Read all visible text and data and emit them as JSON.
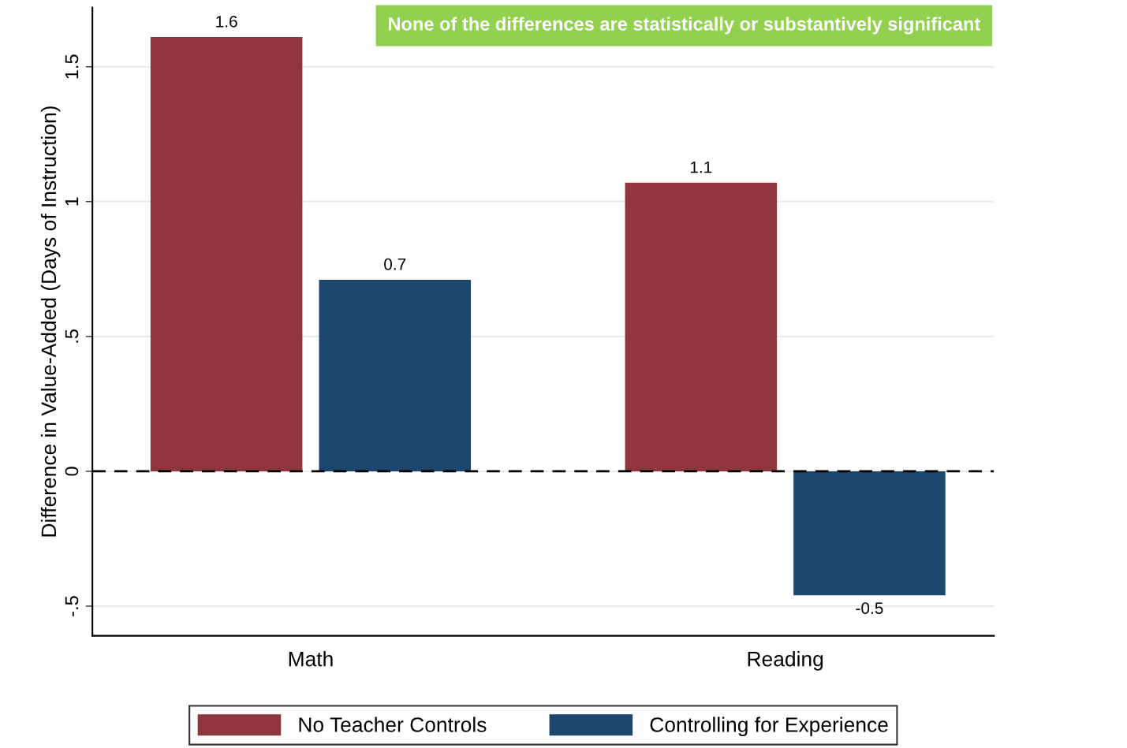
{
  "chart_data": {
    "type": "bar",
    "ylabel": "Difference in Value-Added (Days of Instruction)",
    "categories": [
      "Math",
      "Reading"
    ],
    "series": [
      {
        "name": "No Teacher Controls",
        "color": "#8f353d",
        "values": [
          1.61,
          1.07
        ],
        "value_labels": [
          "1.6",
          "1.1"
        ]
      },
      {
        "name": "Controlling for Experience",
        "color": "#1d466d",
        "values": [
          0.71,
          -0.46
        ],
        "value_labels": [
          "0.7",
          "-0.5"
        ]
      }
    ],
    "ylim": [
      -0.61,
      1.72
    ],
    "yticks": [
      {
        "value": -0.5,
        "label": "-.5"
      },
      0,
      {
        "value": 0.5,
        "label": ".5"
      },
      1,
      1.5
    ],
    "grid": "y",
    "ref_lines": [
      {
        "axis": "y",
        "value": 0,
        "color": "#000000",
        "line_style": "dashed"
      }
    ],
    "annotations": [
      "None of the differences are statistically or substantively significant"
    ],
    "legend": "bottom"
  }
}
